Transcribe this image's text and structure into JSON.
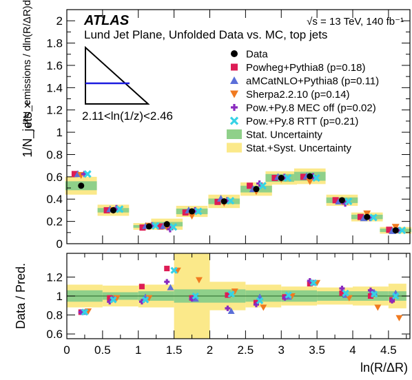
{
  "chart_data": [
    {
      "type": "scatter",
      "panel": "upper",
      "experiment": "ATLAS",
      "energy_label": "√s = 13 TeV, 140 fb⁻¹",
      "title": "Lund Jet Plane, Unfolded Data vs. MC, top jets",
      "range_label": "2.11<ln(1/z)<2.46",
      "ylabel_factor": "1/N_jets ×",
      "ylabel_fraction": "d²N_emissions / dln(R/ΔR)dln(1/z)",
      "ylim": [
        0,
        2.1
      ],
      "yticks": [
        "0",
        "0.2",
        "0.4",
        "0.6",
        "0.8",
        "1",
        "1.2",
        "1.4",
        "1.6",
        "1.8",
        "2"
      ],
      "bins": [
        [
          0,
          0.5
        ],
        [
          0.5,
          1
        ],
        [
          1,
          1.5
        ],
        [
          1.5,
          2
        ],
        [
          2,
          2.5
        ],
        [
          2.5,
          3
        ],
        [
          3,
          3.5
        ],
        [
          3.5,
          4
        ],
        [
          4,
          4.5
        ],
        [
          4.5,
          4.75
        ]
      ],
      "data": [
        0.52,
        0.3,
        0.155,
        0.175,
        0.29,
        0.38,
        0.49,
        0.59,
        0.605,
        0.39,
        0.24,
        0.12
      ],
      "data_x": [
        0.2,
        0.65,
        1.15,
        1.4,
        1.75,
        2.2,
        2.65,
        3.0,
        3.4,
        3.85,
        4.2,
        4.6
      ],
      "stat_unc": [
        0.04,
        0.02,
        0.012,
        0.02,
        0.025,
        0.025,
        0.03,
        0.035,
        0.04,
        0.025,
        0.02,
        0.015
      ],
      "syst_unc": [
        0.08,
        0.05,
        0.03,
        0.05,
        0.05,
        0.06,
        0.06,
        0.06,
        0.07,
        0.05,
        0.04,
        0.03
      ],
      "series": [
        {
          "name": "Powheg+Pythia8 (p=0.18)",
          "marker": "square",
          "color": "#dd1c55",
          "values": [
            0.625,
            0.3,
            0.145,
            0.155,
            0.28,
            0.375,
            0.52,
            0.59,
            0.6,
            0.39,
            0.24,
            0.125
          ]
        },
        {
          "name": "aMCatNLO+Pythia8 (p=0.11)",
          "marker": "triangle-up",
          "color": "#5b6fd9",
          "values": [
            0.625,
            0.31,
            0.16,
            0.16,
            0.3,
            0.405,
            0.49,
            0.6,
            0.605,
            0.38,
            0.23,
            0.115
          ]
        },
        {
          "name": "Sherpa2.2.10 (p=0.14)",
          "marker": "triangle-down",
          "color": "#f07a20",
          "values": [
            0.615,
            0.3,
            0.16,
            0.15,
            0.25,
            0.365,
            0.47,
            0.58,
            0.56,
            0.38,
            0.27,
            0.15
          ]
        },
        {
          "name": "Pow.+Py.8 MEC off (p=0.02)",
          "marker": "plus",
          "color": "#8a2bbf",
          "values": [
            0.625,
            0.32,
            0.165,
            0.13,
            0.3,
            0.39,
            0.54,
            0.6,
            0.605,
            0.36,
            0.23,
            0.12
          ]
        },
        {
          "name": "Pow.+Py.8 RTT (p=0.21)",
          "marker": "cross",
          "color": "#36d2e6",
          "values": [
            0.625,
            0.31,
            0.16,
            0.15,
            0.29,
            0.385,
            0.52,
            0.59,
            0.59,
            0.38,
            0.235,
            0.12
          ]
        }
      ],
      "legend": [
        {
          "label": "Data",
          "marker": "circle",
          "color": "#000000"
        },
        {
          "label": "Powheg+Pythia8 (p=0.18)",
          "marker": "square",
          "color": "#dd1c55"
        },
        {
          "label": "aMCatNLO+Pythia8 (p=0.11)",
          "marker": "triangle-up",
          "color": "#5b6fd9"
        },
        {
          "label": "Sherpa2.2.10 (p=0.14)",
          "marker": "triangle-down",
          "color": "#f07a20"
        },
        {
          "label": "Pow.+Py.8 MEC off (p=0.02)",
          "marker": "plus",
          "color": "#8a2bbf"
        },
        {
          "label": "Pow.+Py.8 RTT (p=0.21)",
          "marker": "cross",
          "color": "#36d2e6"
        },
        {
          "label": "Stat. Uncertainty",
          "marker": "band",
          "color": "#8fd08a"
        },
        {
          "label": "Stat.+Syst. Uncertainty",
          "marker": "band",
          "color": "#fbe98a"
        }
      ],
      "legend_placement": "right"
    },
    {
      "type": "scatter",
      "panel": "ratio",
      "ylabel": "Data / Pred.",
      "xlabel": "ln(R/ΔR)",
      "ylim": [
        0.55,
        1.45
      ],
      "yticks": [
        "0.6",
        "0.8",
        "1",
        "1.2"
      ],
      "xlim": [
        0,
        4.8
      ],
      "xticks": [
        "0",
        "0.5",
        "1",
        "1.5",
        "2",
        "2.5",
        "3",
        "3.5",
        "4",
        "4.5"
      ],
      "reference_line": 1.0,
      "stat_band": [
        0.06,
        0.04,
        0.05,
        0.07,
        0.07,
        0.06,
        0.06,
        0.05,
        0.05,
        0.05
      ],
      "syst_band": [
        0.12,
        0.11,
        0.12,
        0.45,
        0.15,
        0.12,
        0.1,
        0.09,
        0.1,
        0.13
      ],
      "series": [
        {
          "name": "Powheg+Pythia8",
          "marker": "square",
          "color": "#dd1c55",
          "x": [
            0.2,
            0.6,
            1.05,
            1.4,
            1.75,
            2.25,
            2.65,
            3.05,
            3.4,
            3.85,
            4.25,
            4.55
          ],
          "values": [
            0.83,
            0.98,
            1.1,
            1.29,
            0.98,
            1.01,
            0.93,
            0.99,
            1.13,
            1.03,
            1.0,
            0.96
          ]
        },
        {
          "name": "aMCatNLO+Pythia8",
          "marker": "triangle-up",
          "color": "#5b6fd9",
          "x": [
            0.25,
            0.65,
            1.1,
            1.45,
            1.8,
            2.3,
            2.7,
            3.1,
            3.45,
            3.9,
            4.3,
            4.6
          ],
          "values": [
            0.83,
            0.97,
            0.99,
            1.09,
            0.97,
            0.84,
            0.99,
            0.99,
            1.14,
            1.01,
            1.04,
            1.03
          ]
        },
        {
          "name": "Sherpa2.2.10",
          "marker": "triangle-down",
          "color": "#f07a20",
          "x": [
            0.3,
            0.7,
            1.15,
            1.55,
            1.85,
            2.35,
            2.75,
            3.15,
            3.5,
            3.95,
            4.35,
            4.65
          ],
          "values": [
            0.84,
            0.98,
            0.98,
            1.27,
            1.17,
            1.05,
            0.88,
            1.0,
            1.14,
            0.98,
            0.88,
            0.77
          ]
        },
        {
          "name": "Pow.+Py.8 MEC off",
          "marker": "plus",
          "color": "#8a2bbf",
          "x": [
            0.2,
            0.6,
            1.05,
            1.4,
            1.75,
            2.25,
            2.65,
            3.05,
            3.4,
            3.85,
            4.25,
            4.55
          ],
          "values": [
            0.83,
            0.94,
            0.94,
            1.15,
            0.97,
            0.87,
            0.91,
            0.98,
            1.16,
            1.08,
            1.06,
            0.95
          ]
        },
        {
          "name": "Pow.+Py.8 RTT",
          "marker": "cross",
          "color": "#36d2e6",
          "x": [
            0.25,
            0.65,
            1.1,
            1.5,
            1.8,
            2.3,
            2.7,
            3.1,
            3.45,
            3.9,
            4.3,
            4.6
          ],
          "values": [
            0.83,
            0.96,
            0.96,
            1.27,
            1.0,
            1.02,
            0.95,
            1.01,
            1.14,
            1.03,
            1.02,
            1.0
          ]
        }
      ]
    }
  ]
}
